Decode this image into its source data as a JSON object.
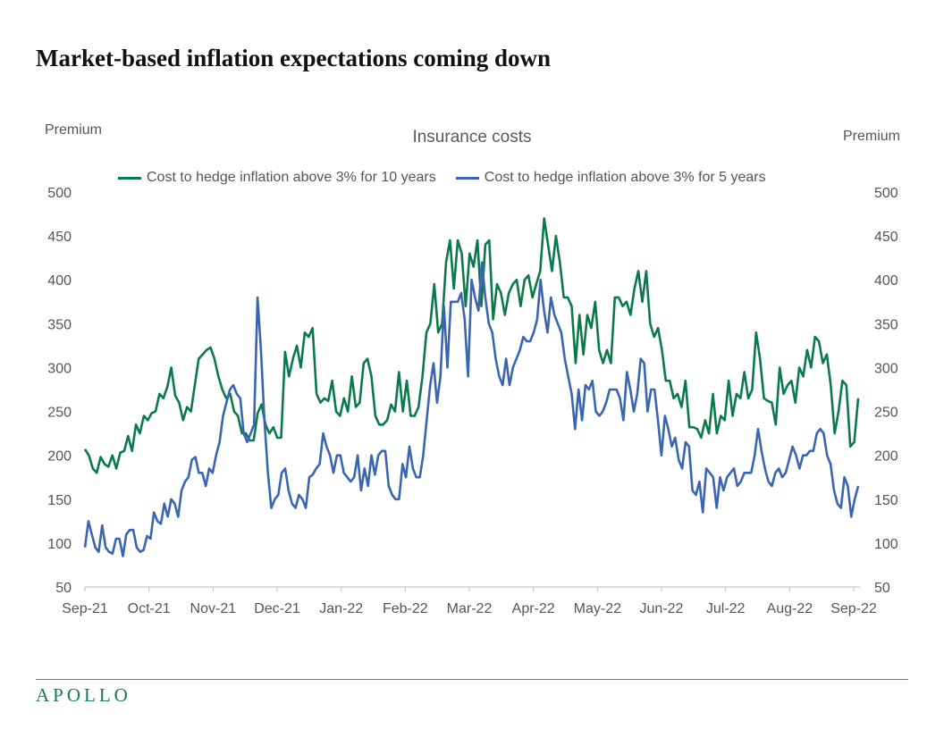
{
  "title": "Market-based inflation expectations coming down",
  "logo": "APOLLO",
  "colors": {
    "green": "#0b7a4b",
    "blue": "#3a65b0"
  },
  "chart_data": {
    "type": "line",
    "title": "Insurance costs",
    "ylabel_left": "Premium",
    "ylabel_right": "Premium",
    "ylim": [
      50,
      500
    ],
    "yticks": [
      "50",
      "100",
      "150",
      "200",
      "250",
      "300",
      "350",
      "400",
      "450",
      "500"
    ],
    "xlim": [
      "2021-09-01",
      "2022-09-02"
    ],
    "xticks": [
      "Sep-21",
      "Oct-21",
      "Nov-21",
      "Dec-21",
      "Jan-22",
      "Feb-22",
      "Mar-22",
      "Apr-22",
      "May-22",
      "Jun-22",
      "Jul-22",
      "Aug-22",
      "Sep-22"
    ],
    "grid": false,
    "legend": "top",
    "series": [
      {
        "name": "Cost to hedge inflation above 3% for 10 years",
        "color": "#0b7a4b",
        "x_start": "2021-09-01",
        "x_end": "2022-09-02",
        "values": [
          207,
          200,
          185,
          180,
          198,
          190,
          187,
          200,
          185,
          203,
          205,
          222,
          205,
          235,
          225,
          245,
          240,
          248,
          250,
          270,
          265,
          278,
          300,
          268,
          260,
          240,
          255,
          250,
          280,
          310,
          315,
          320,
          323,
          310,
          290,
          275,
          265,
          270,
          250,
          245,
          225,
          225,
          217,
          217,
          248,
          258,
          235,
          225,
          232,
          220,
          220,
          318,
          290,
          310,
          325,
          300,
          340,
          335,
          345,
          270,
          260,
          265,
          262,
          285,
          250,
          245,
          265,
          250,
          290,
          255,
          260,
          305,
          310,
          290,
          245,
          235,
          235,
          240,
          258,
          250,
          295,
          250,
          285,
          245,
          245,
          255,
          290,
          340,
          350,
          395,
          340,
          350,
          420,
          445,
          390,
          445,
          430,
          370,
          430,
          415,
          445,
          370,
          440,
          445,
          355,
          395,
          385,
          360,
          385,
          395,
          400,
          370,
          400,
          405,
          380,
          395,
          410,
          470,
          440,
          410,
          450,
          420,
          380,
          380,
          370,
          305,
          360,
          315,
          360,
          345,
          375,
          320,
          305,
          320,
          305,
          380,
          380,
          370,
          375,
          360,
          390,
          410,
          375,
          410,
          350,
          335,
          345,
          320,
          285,
          285,
          265,
          270,
          255,
          285,
          232,
          232,
          230,
          220,
          240,
          225,
          270,
          225,
          245,
          240,
          285,
          245,
          270,
          265,
          295,
          265,
          275,
          340,
          310,
          265,
          262,
          260,
          235,
          300,
          270,
          280,
          285,
          260,
          300,
          290,
          320,
          300,
          335,
          330,
          305,
          315,
          280,
          225,
          250,
          285,
          280,
          210,
          215,
          265
        ]
      },
      {
        "name": "Cost to hedge inflation above 3% for 5 years",
        "color": "#3a65b0",
        "x_start": "2021-09-01",
        "x_end": "2022-09-02",
        "values": [
          95,
          125,
          110,
          95,
          90,
          120,
          95,
          90,
          88,
          105,
          105,
          85,
          110,
          115,
          115,
          95,
          90,
          92,
          108,
          105,
          135,
          125,
          122,
          145,
          130,
          150,
          145,
          130,
          160,
          170,
          175,
          195,
          198,
          180,
          180,
          165,
          185,
          180,
          200,
          215,
          245,
          260,
          275,
          280,
          270,
          265,
          225,
          215,
          225,
          235,
          380,
          320,
          240,
          180,
          140,
          150,
          155,
          180,
          185,
          160,
          145,
          140,
          155,
          150,
          140,
          175,
          178,
          185,
          190,
          225,
          210,
          200,
          180,
          200,
          200,
          180,
          175,
          170,
          175,
          200,
          160,
          185,
          165,
          200,
          178,
          200,
          205,
          205,
          165,
          155,
          150,
          150,
          190,
          175,
          210,
          185,
          175,
          175,
          200,
          240,
          280,
          305,
          260,
          290,
          370,
          300,
          375,
          375,
          375,
          385,
          355,
          290,
          400,
          380,
          365,
          420,
          380,
          350,
          340,
          310,
          290,
          280,
          310,
          280,
          300,
          310,
          320,
          335,
          330,
          330,
          340,
          355,
          400,
          365,
          340,
          380,
          360,
          350,
          340,
          310,
          290,
          270,
          230,
          275,
          240,
          280,
          275,
          285,
          250,
          245,
          250,
          260,
          275,
          275,
          275,
          265,
          240,
          295,
          275,
          250,
          270,
          310,
          305,
          250,
          275,
          275,
          240,
          200,
          245,
          230,
          210,
          220,
          195,
          185,
          215,
          210,
          160,
          155,
          170,
          135,
          185,
          180,
          175,
          140,
          175,
          160,
          175,
          180,
          185,
          165,
          170,
          180,
          180,
          180,
          200,
          230,
          205,
          185,
          170,
          165,
          180,
          185,
          175,
          180,
          195,
          210,
          200,
          185,
          200,
          200,
          205,
          205,
          225,
          230,
          225,
          200,
          190,
          160,
          145,
          140,
          175,
          165,
          130,
          150,
          165
        ]
      }
    ]
  }
}
